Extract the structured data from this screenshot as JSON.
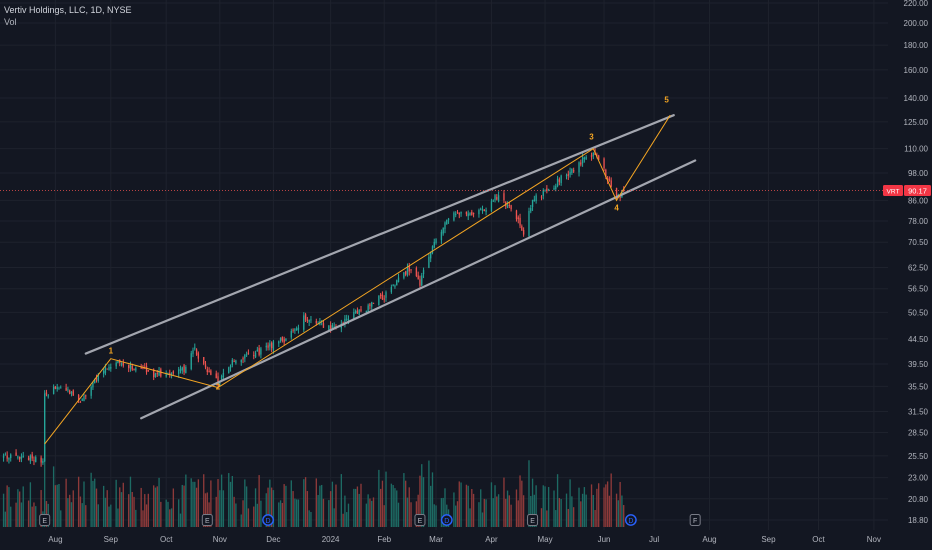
{
  "header": {
    "symbol_line": "Vertiv Holdings, LLC, 1D, NYSE",
    "volume_label": "Vol"
  },
  "colors": {
    "background": "#131722",
    "grid": "#1e222d",
    "axis_text": "#b2b5be",
    "up": "#26a69a",
    "down": "#ef5350",
    "up_volume": "#1d6b64",
    "down_volume": "#8e3a3a",
    "wave_line": "#f5a623",
    "channel": "#a3a6af",
    "price_line": "#ef5350",
    "price_tag_bg": "#f23645",
    "wave_label": "#f5a623",
    "event_earnings": "#787b86",
    "event_dividend": "#2962ff"
  },
  "chart_data": {
    "type": "candlestick",
    "symbol": "VRT",
    "interval": "1D",
    "exchange": "NYSE",
    "y_scale": "log",
    "y_ticks": [
      "220.00",
      "200.00",
      "180.00",
      "160.00",
      "140.00",
      "125.00",
      "110.00",
      "98.00",
      "86.00",
      "78.00",
      "70.50",
      "62.50",
      "56.50",
      "50.50",
      "44.50",
      "39.50",
      "35.50",
      "31.50",
      "28.50",
      "25.50",
      "23.00",
      "20.80",
      "18.80"
    ],
    "x_ticks": [
      {
        "label": "Aug",
        "date": "2023-08-01"
      },
      {
        "label": "Sep",
        "date": "2023-09-01"
      },
      {
        "label": "Oct",
        "date": "2023-10-02"
      },
      {
        "label": "Nov",
        "date": "2023-11-01"
      },
      {
        "label": "Dec",
        "date": "2023-12-01"
      },
      {
        "label": "2024",
        "date": "2024-01-02"
      },
      {
        "label": "Feb",
        "date": "2024-02-01"
      },
      {
        "label": "Mar",
        "date": "2024-03-01"
      },
      {
        "label": "Apr",
        "date": "2024-04-01"
      },
      {
        "label": "May",
        "date": "2024-05-01"
      },
      {
        "label": "Jun",
        "date": "2024-06-03"
      },
      {
        "label": "Jul",
        "date": "2024-07-01"
      },
      {
        "label": "Aug",
        "date": "2024-08-01"
      },
      {
        "label": "Sep",
        "date": "2024-09-03"
      },
      {
        "label": "Oct",
        "date": "2024-10-01"
      },
      {
        "label": "Nov",
        "date": "2024-11-01"
      }
    ],
    "last_price": {
      "symbol": "VRT",
      "value": "90.17"
    },
    "anchors": [
      {
        "date": "2023-07-01",
        "close": 25.5
      },
      {
        "date": "2023-07-25",
        "close": 25.0
      },
      {
        "date": "2023-07-26",
        "close": 34.0
      },
      {
        "date": "2023-08-04",
        "close": 35.5
      },
      {
        "date": "2023-08-14",
        "close": 33.0
      },
      {
        "date": "2023-08-31",
        "close": 39.5
      },
      {
        "date": "2023-09-05",
        "close": 40.0
      },
      {
        "date": "2023-09-26",
        "close": 37.5
      },
      {
        "date": "2023-10-12",
        "close": 38.5
      },
      {
        "date": "2023-10-18",
        "close": 42.5
      },
      {
        "date": "2023-10-24",
        "close": 38.5
      },
      {
        "date": "2023-10-31",
        "close": 36.0
      },
      {
        "date": "2023-11-08",
        "close": 40.0
      },
      {
        "date": "2023-11-24",
        "close": 42.0
      },
      {
        "date": "2023-12-08",
        "close": 44.5
      },
      {
        "date": "2023-12-18",
        "close": 49.0
      },
      {
        "date": "2024-01-03",
        "close": 47.0
      },
      {
        "date": "2024-01-18",
        "close": 50.5
      },
      {
        "date": "2024-02-02",
        "close": 55.0
      },
      {
        "date": "2024-02-14",
        "close": 62.0
      },
      {
        "date": "2024-02-21",
        "close": 58.0
      },
      {
        "date": "2024-03-01",
        "close": 72.0
      },
      {
        "date": "2024-03-08",
        "close": 80.0
      },
      {
        "date": "2024-03-15",
        "close": 82.0
      },
      {
        "date": "2024-03-25",
        "close": 81.0
      },
      {
        "date": "2024-04-05",
        "close": 88.0
      },
      {
        "date": "2024-04-12",
        "close": 83.0
      },
      {
        "date": "2024-04-19",
        "close": 74.0
      },
      {
        "date": "2024-04-24",
        "close": 86.0
      },
      {
        "date": "2024-05-08",
        "close": 94.0
      },
      {
        "date": "2024-05-22",
        "close": 104.0
      },
      {
        "date": "2024-05-29",
        "close": 108.0
      },
      {
        "date": "2024-06-05",
        "close": 96.0
      },
      {
        "date": "2024-06-11",
        "close": 87.0
      },
      {
        "date": "2024-06-14",
        "close": 90.17
      }
    ],
    "wave_labels": [
      {
        "label": "1",
        "date": "2023-09-01",
        "price": 41.5
      },
      {
        "label": "2",
        "date": "2023-10-31",
        "price": 35.0
      },
      {
        "label": "3",
        "date": "2024-05-27",
        "price": 115.0
      },
      {
        "label": "4",
        "date": "2024-06-10",
        "price": 82.0
      },
      {
        "label": "5",
        "date": "2024-07-08",
        "price": 137.0
      }
    ],
    "wave_path": [
      {
        "date": "2023-07-26",
        "price": 27.0
      },
      {
        "date": "2023-09-01",
        "price": 40.5
      },
      {
        "date": "2023-10-31",
        "price": 35.3
      },
      {
        "date": "2024-05-28",
        "price": 110.0
      },
      {
        "date": "2024-06-10",
        "price": 86.0
      },
      {
        "date": "2024-07-10",
        "price": 129.0
      }
    ],
    "channels": [
      {
        "from": {
          "date": "2023-08-18",
          "price": 41.5
        },
        "to": {
          "date": "2024-07-12",
          "price": 129.0
        }
      },
      {
        "from": {
          "date": "2023-09-18",
          "price": 30.5
        },
        "to": {
          "date": "2024-07-24",
          "price": 104.0
        }
      }
    ],
    "events": [
      {
        "type": "earnings",
        "label": "E",
        "date": "2023-07-26"
      },
      {
        "type": "earnings",
        "label": "E",
        "date": "2023-10-25"
      },
      {
        "type": "dividend",
        "label": "D",
        "date": "2023-11-28"
      },
      {
        "type": "earnings",
        "label": "E",
        "date": "2024-02-21"
      },
      {
        "type": "dividend",
        "label": "D",
        "date": "2024-03-07"
      },
      {
        "type": "earnings",
        "label": "E",
        "date": "2024-04-24"
      },
      {
        "type": "dividend",
        "label": "D",
        "date": "2024-06-18"
      },
      {
        "type": "future",
        "label": "F",
        "date": "2024-07-24"
      }
    ]
  }
}
